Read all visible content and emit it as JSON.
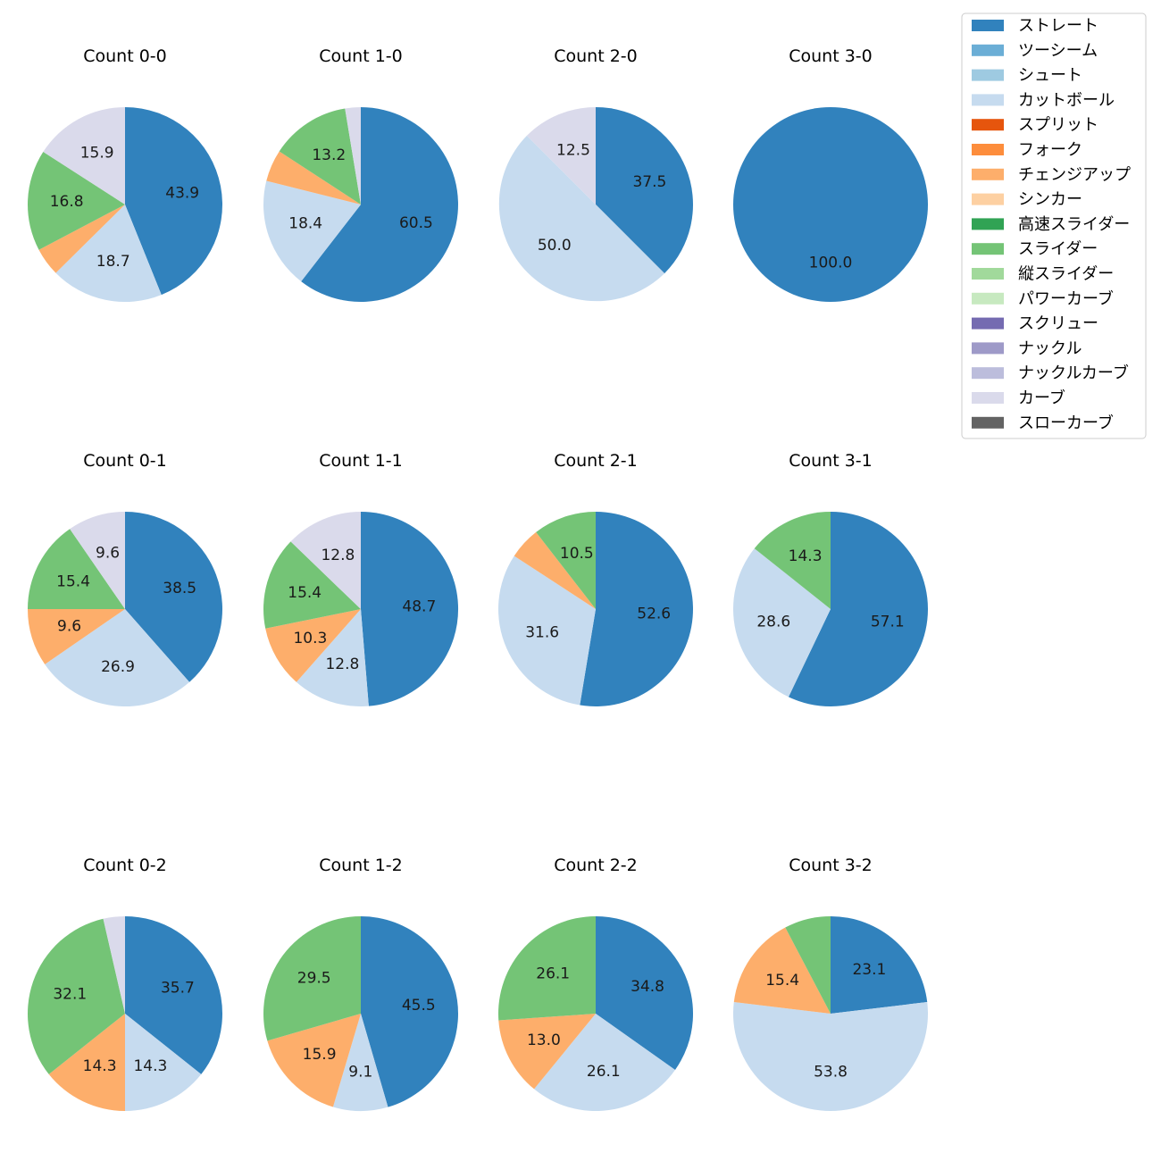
{
  "pitch_types": [
    {
      "name": "ストレート",
      "color": "#3182bd"
    },
    {
      "name": "ツーシーム",
      "color": "#6baed6"
    },
    {
      "name": "シュート",
      "color": "#9ecae1"
    },
    {
      "name": "カットボール",
      "color": "#c6dbef"
    },
    {
      "name": "スプリット",
      "color": "#e6550d"
    },
    {
      "name": "フォーク",
      "color": "#fd8d3c"
    },
    {
      "name": "チェンジアップ",
      "color": "#fdae6b"
    },
    {
      "name": "シンカー",
      "color": "#fdd0a2"
    },
    {
      "name": "高速スライダー",
      "color": "#31a354"
    },
    {
      "name": "スライダー",
      "color": "#74c476"
    },
    {
      "name": "縦スライダー",
      "color": "#a1d99b"
    },
    {
      "name": "パワーカーブ",
      "color": "#c7e9c0"
    },
    {
      "name": "スクリュー",
      "color": "#756bb1"
    },
    {
      "name": "ナックル",
      "color": "#9e9ac8"
    },
    {
      "name": "ナックルカーブ",
      "color": "#bcbddc"
    },
    {
      "name": "カーブ",
      "color": "#dadaeb"
    },
    {
      "name": "スローカーブ",
      "color": "#636363"
    }
  ],
  "chart_data": [
    {
      "type": "pie",
      "title": "Count 0-0",
      "slices": [
        {
          "label": "ストレート",
          "value": 43.9,
          "text": "43.9"
        },
        {
          "label": "カットボール",
          "value": 18.7,
          "text": "18.7"
        },
        {
          "label": "チェンジアップ",
          "value": 4.7,
          "text": ""
        },
        {
          "label": "スライダー",
          "value": 16.8,
          "text": "16.8"
        },
        {
          "label": "カーブ",
          "value": 15.9,
          "text": "15.9"
        }
      ]
    },
    {
      "type": "pie",
      "title": "Count 1-0",
      "slices": [
        {
          "label": "ストレート",
          "value": 60.5,
          "text": "60.5"
        },
        {
          "label": "カットボール",
          "value": 18.4,
          "text": "18.4"
        },
        {
          "label": "チェンジアップ",
          "value": 5.3,
          "text": ""
        },
        {
          "label": "スライダー",
          "value": 13.2,
          "text": "13.2"
        },
        {
          "label": "カーブ",
          "value": 2.6,
          "text": ""
        }
      ]
    },
    {
      "type": "pie",
      "title": "Count 2-0",
      "slices": [
        {
          "label": "ストレート",
          "value": 37.5,
          "text": "37.5"
        },
        {
          "label": "カットボール",
          "value": 50.0,
          "text": "50.0"
        },
        {
          "label": "カーブ",
          "value": 12.5,
          "text": "12.5"
        }
      ]
    },
    {
      "type": "pie",
      "title": "Count 3-0",
      "slices": [
        {
          "label": "ストレート",
          "value": 100.0,
          "text": "100.0"
        }
      ]
    },
    {
      "type": "pie",
      "title": "Count 0-1",
      "slices": [
        {
          "label": "ストレート",
          "value": 38.5,
          "text": "38.5"
        },
        {
          "label": "カットボール",
          "value": 26.9,
          "text": "26.9"
        },
        {
          "label": "チェンジアップ",
          "value": 9.6,
          "text": "9.6"
        },
        {
          "label": "スライダー",
          "value": 15.4,
          "text": "15.4"
        },
        {
          "label": "カーブ",
          "value": 9.6,
          "text": "9.6"
        }
      ]
    },
    {
      "type": "pie",
      "title": "Count 1-1",
      "slices": [
        {
          "label": "ストレート",
          "value": 48.7,
          "text": "48.7"
        },
        {
          "label": "カットボール",
          "value": 12.8,
          "text": "12.8"
        },
        {
          "label": "チェンジアップ",
          "value": 10.3,
          "text": "10.3"
        },
        {
          "label": "スライダー",
          "value": 15.4,
          "text": "15.4"
        },
        {
          "label": "カーブ",
          "value": 12.8,
          "text": "12.8"
        }
      ]
    },
    {
      "type": "pie",
      "title": "Count 2-1",
      "slices": [
        {
          "label": "ストレート",
          "value": 52.6,
          "text": "52.6"
        },
        {
          "label": "カットボール",
          "value": 31.6,
          "text": "31.6"
        },
        {
          "label": "チェンジアップ",
          "value": 5.3,
          "text": ""
        },
        {
          "label": "スライダー",
          "value": 10.5,
          "text": "10.5"
        }
      ]
    },
    {
      "type": "pie",
      "title": "Count 3-1",
      "slices": [
        {
          "label": "ストレート",
          "value": 57.1,
          "text": "57.1"
        },
        {
          "label": "カットボール",
          "value": 28.6,
          "text": "28.6"
        },
        {
          "label": "スライダー",
          "value": 14.3,
          "text": "14.3"
        }
      ]
    },
    {
      "type": "pie",
      "title": "Count 0-2",
      "slices": [
        {
          "label": "ストレート",
          "value": 35.7,
          "text": "35.7"
        },
        {
          "label": "カットボール",
          "value": 14.3,
          "text": "14.3"
        },
        {
          "label": "チェンジアップ",
          "value": 14.3,
          "text": "14.3"
        },
        {
          "label": "スライダー",
          "value": 32.1,
          "text": "32.1"
        },
        {
          "label": "カーブ",
          "value": 3.6,
          "text": ""
        }
      ]
    },
    {
      "type": "pie",
      "title": "Count 1-2",
      "slices": [
        {
          "label": "ストレート",
          "value": 45.5,
          "text": "45.5"
        },
        {
          "label": "カットボール",
          "value": 9.1,
          "text": "9.1"
        },
        {
          "label": "チェンジアップ",
          "value": 15.9,
          "text": "15.9"
        },
        {
          "label": "スライダー",
          "value": 29.5,
          "text": "29.5"
        }
      ]
    },
    {
      "type": "pie",
      "title": "Count 2-2",
      "slices": [
        {
          "label": "ストレート",
          "value": 34.8,
          "text": "34.8"
        },
        {
          "label": "カットボール",
          "value": 26.1,
          "text": "26.1"
        },
        {
          "label": "チェンジアップ",
          "value": 13.0,
          "text": "13.0"
        },
        {
          "label": "スライダー",
          "value": 26.1,
          "text": "26.1"
        }
      ]
    },
    {
      "type": "pie",
      "title": "Count 3-2",
      "slices": [
        {
          "label": "ストレート",
          "value": 23.1,
          "text": "23.1"
        },
        {
          "label": "カットボール",
          "value": 53.8,
          "text": "53.8"
        },
        {
          "label": "チェンジアップ",
          "value": 15.4,
          "text": "15.4"
        },
        {
          "label": "スライダー",
          "value": 7.7,
          "text": ""
        }
      ]
    }
  ],
  "legend": {
    "position": "top-right"
  }
}
